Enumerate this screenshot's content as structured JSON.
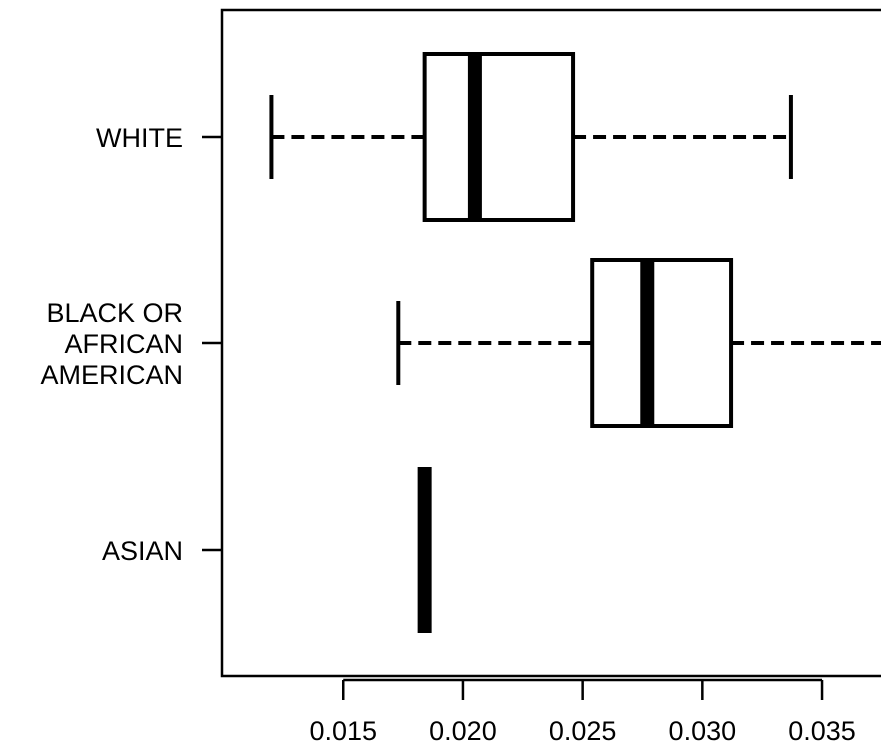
{
  "chart_data": {
    "type": "boxplot",
    "orientation": "horizontal",
    "title": "",
    "xlabel": "",
    "ylabel": "",
    "xlim": [
      0.0113,
      0.0376
    ],
    "x_ticks": [
      0.015,
      0.02,
      0.025,
      0.03,
      0.035
    ],
    "x_tick_labels": [
      "0.015",
      "0.020",
      "0.025",
      "0.030",
      "0.035"
    ],
    "grid": false,
    "categories": [
      {
        "label": [
          "WHITE"
        ],
        "whisker_low": 0.012,
        "q1": 0.0184,
        "median": 0.0205,
        "q3": 0.0246,
        "whisker_high": 0.0337
      },
      {
        "label": [
          "BLACK OR",
          "AFRICAN",
          "AMERICAN"
        ],
        "whisker_low": 0.0173,
        "q1": 0.0254,
        "median": 0.0277,
        "q3": 0.0312,
        "whisker_high": 0.0376
      },
      {
        "label": [
          "ASIAN"
        ],
        "whisker_low": 0.0184,
        "q1": 0.0184,
        "median": 0.0184,
        "q3": 0.0184,
        "whisker_high": 0.0184
      }
    ],
    "colors": {
      "stroke": "#000000",
      "fill": "#ffffff"
    }
  }
}
